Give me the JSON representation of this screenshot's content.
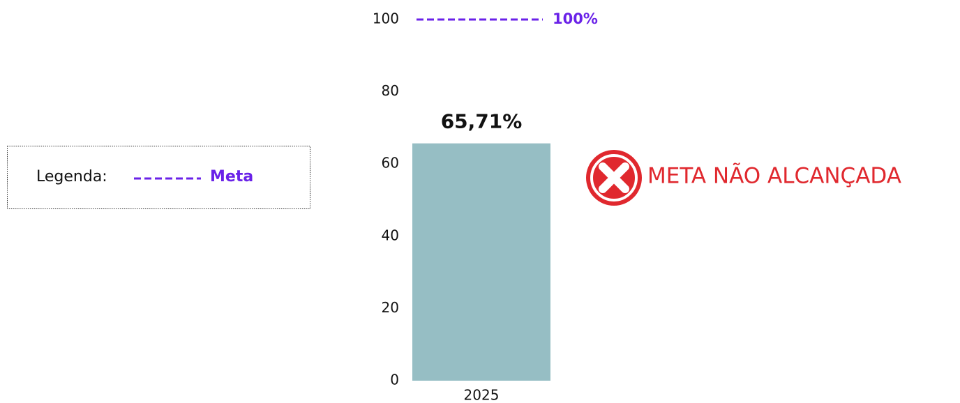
{
  "chart_data": {
    "type": "bar",
    "categories": [
      "2025"
    ],
    "values": [
      65.71
    ],
    "value_labels": [
      "65,71%"
    ],
    "color": "#96bec4",
    "ylim": [
      0,
      100
    ],
    "yticks": [
      0,
      20,
      40,
      60,
      80,
      100
    ],
    "grid": false,
    "target": {
      "name": "Meta",
      "value": 100,
      "value_label": "100%",
      "color": "#6a22e8"
    },
    "legend_title": "Legenda:",
    "annotation": "META NÃO ALCANÇADA"
  }
}
